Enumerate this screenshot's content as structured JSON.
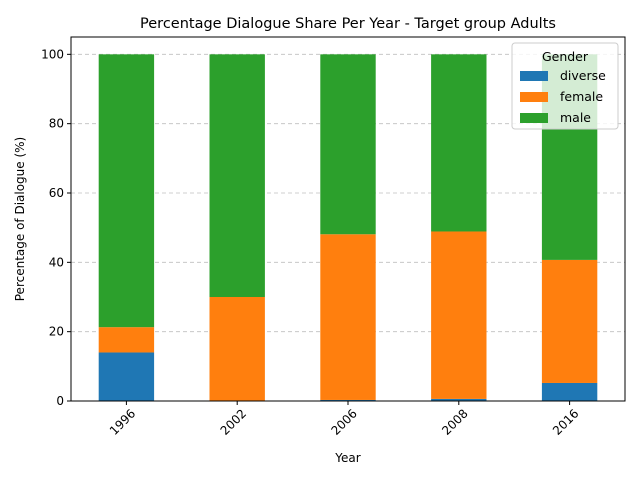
{
  "chart_data": {
    "type": "bar",
    "stacked": true,
    "title": "Percentage Dialogue Share Per Year - Target group Adults",
    "xlabel": "Year",
    "ylabel": "Percentage of Dialogue (%)",
    "categories": [
      "1996",
      "2002",
      "2006",
      "2008",
      "2016"
    ],
    "ylim": [
      0,
      105
    ],
    "yticks": [
      0,
      20,
      40,
      60,
      80,
      100
    ],
    "grid": "y-dashed",
    "legend": {
      "title": "Gender",
      "placement": "top-right"
    },
    "series": [
      {
        "name": "diverse",
        "color": "#1f77b4",
        "values": [
          14.0,
          0.0,
          0.3,
          0.6,
          5.2
        ]
      },
      {
        "name": "female",
        "color": "#ff7f0e",
        "values": [
          7.3,
          30.0,
          47.8,
          48.3,
          35.5
        ]
      },
      {
        "name": "male",
        "color": "#2ca02c",
        "values": [
          78.7,
          70.0,
          51.9,
          51.1,
          59.3
        ]
      }
    ]
  }
}
